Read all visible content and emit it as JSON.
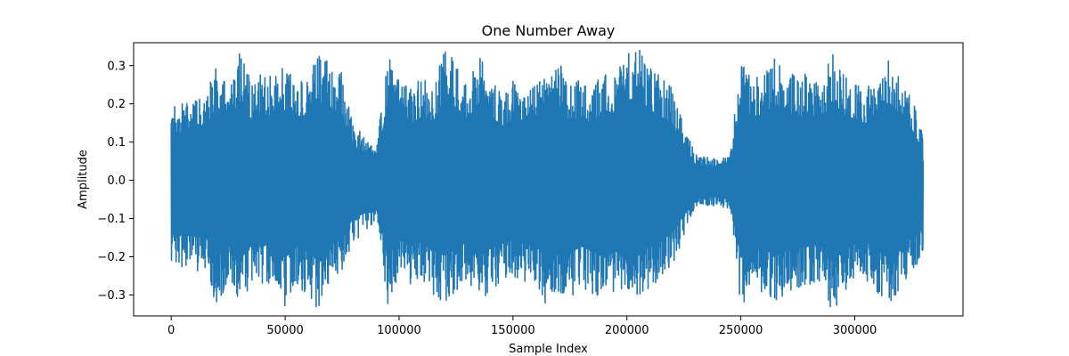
{
  "chart_data": {
    "type": "line",
    "title": "One Number Away",
    "xlabel": "Sample Index",
    "ylabel": "Amplitude",
    "xlim": [
      -16500,
      347500
    ],
    "ylim": [
      -0.355,
      0.36
    ],
    "x_ticks": [
      0,
      50000,
      100000,
      150000,
      200000,
      250000,
      300000
    ],
    "y_ticks": [
      -0.3,
      -0.2,
      -0.1,
      0.0,
      0.1,
      0.2,
      0.3
    ],
    "x_tick_labels": [
      "0",
      "50000",
      "100000",
      "150000",
      "200000",
      "250000",
      "300000"
    ],
    "y_tick_labels": [
      "−0.3",
      "−0.2",
      "−0.1",
      "0.0",
      "0.1",
      "0.2",
      "0.3"
    ],
    "grid": false,
    "legend": "none",
    "series": [
      {
        "color": "#1f77b4",
        "envelope": {
          "x": [
            0,
            5000,
            10000,
            15000,
            20000,
            25000,
            30000,
            35000,
            40000,
            45000,
            50000,
            55000,
            60000,
            65000,
            70000,
            75000,
            80000,
            85000,
            90000,
            95000,
            100000,
            105000,
            110000,
            115000,
            120000,
            125000,
            130000,
            135000,
            140000,
            145000,
            150000,
            155000,
            160000,
            165000,
            170000,
            175000,
            180000,
            185000,
            190000,
            195000,
            200000,
            205000,
            210000,
            215000,
            220000,
            225000,
            230000,
            235000,
            240000,
            245000,
            250000,
            255000,
            260000,
            265000,
            270000,
            275000,
            280000,
            285000,
            290000,
            295000,
            300000,
            305000,
            310000,
            315000,
            320000,
            325000,
            330000
          ],
          "max": [
            0.2,
            0.2,
            0.21,
            0.22,
            0.32,
            0.24,
            0.34,
            0.26,
            0.28,
            0.27,
            0.3,
            0.25,
            0.29,
            0.33,
            0.31,
            0.28,
            0.14,
            0.12,
            0.08,
            0.33,
            0.26,
            0.24,
            0.27,
            0.25,
            0.34,
            0.31,
            0.26,
            0.33,
            0.28,
            0.23,
            0.26,
            0.22,
            0.25,
            0.28,
            0.32,
            0.25,
            0.27,
            0.24,
            0.3,
            0.28,
            0.34,
            0.35,
            0.3,
            0.27,
            0.24,
            0.14,
            0.07,
            0.06,
            0.06,
            0.06,
            0.33,
            0.27,
            0.28,
            0.32,
            0.3,
            0.26,
            0.29,
            0.24,
            0.34,
            0.28,
            0.26,
            0.24,
            0.3,
            0.33,
            0.28,
            0.22,
            0.12
          ],
          "min": [
            -0.22,
            -0.23,
            -0.24,
            -0.24,
            -0.33,
            -0.27,
            -0.33,
            -0.28,
            -0.27,
            -0.29,
            -0.33,
            -0.28,
            -0.3,
            -0.35,
            -0.28,
            -0.24,
            -0.16,
            -0.14,
            -0.1,
            -0.33,
            -0.25,
            -0.28,
            -0.26,
            -0.3,
            -0.32,
            -0.29,
            -0.26,
            -0.33,
            -0.29,
            -0.27,
            -0.25,
            -0.27,
            -0.28,
            -0.33,
            -0.3,
            -0.31,
            -0.28,
            -0.3,
            -0.33,
            -0.3,
            -0.34,
            -0.31,
            -0.28,
            -0.26,
            -0.22,
            -0.15,
            -0.08,
            -0.07,
            -0.07,
            -0.08,
            -0.33,
            -0.3,
            -0.29,
            -0.32,
            -0.3,
            -0.29,
            -0.28,
            -0.27,
            -0.35,
            -0.3,
            -0.27,
            -0.26,
            -0.3,
            -0.33,
            -0.3,
            -0.24,
            -0.2
          ]
        }
      }
    ]
  }
}
